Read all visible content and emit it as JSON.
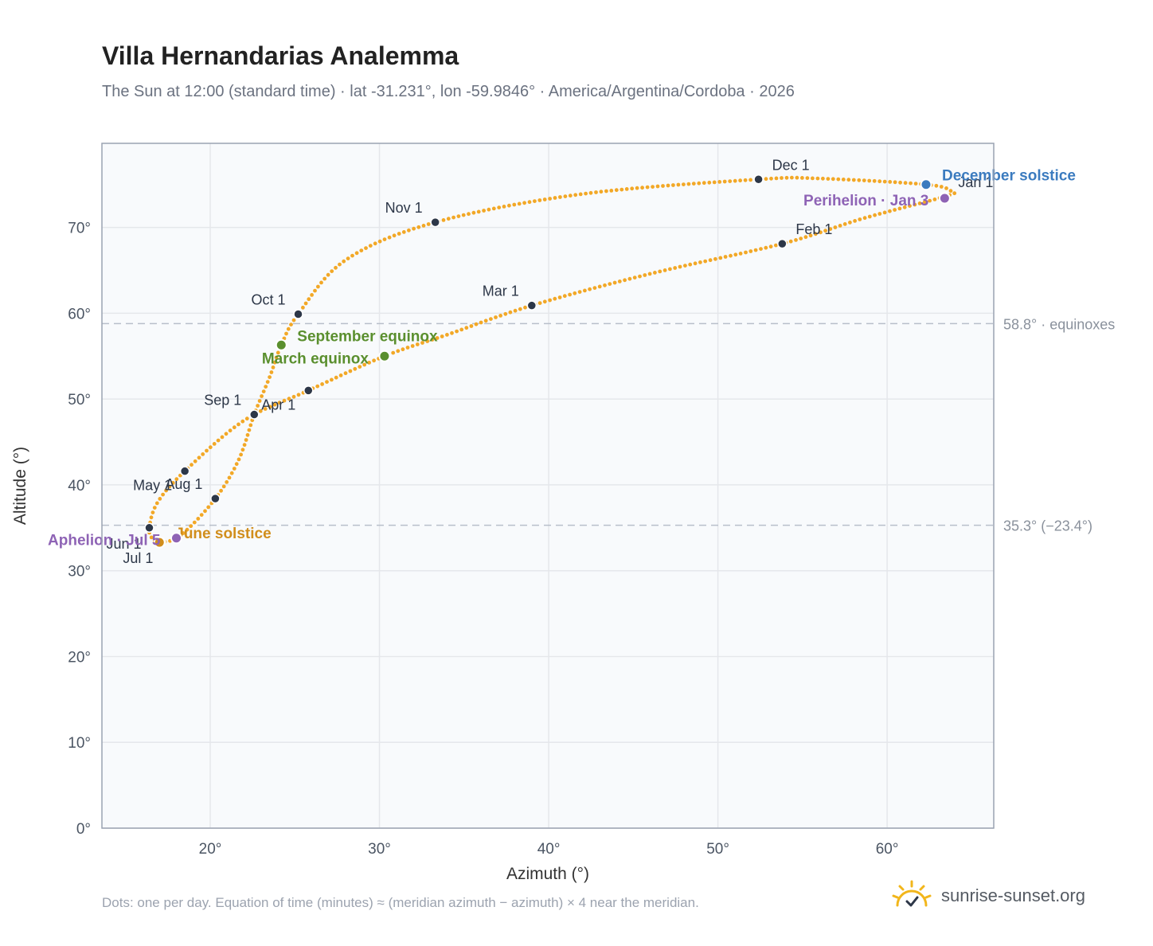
{
  "header": {
    "title": "Villa Hernandarias Analemma",
    "subtitle": "The Sun at 12:00 (standard time) · lat -31.231°, lon -59.9846° · America/Argentina/Cordoba · 2026"
  },
  "footer": {
    "note": "Dots: one per day. Equation of time (minutes) ≈ (meridian azimuth − azimuth) × 4 near the meridian.",
    "brand": "sunrise-sunset.org",
    "brand_icon": "sun-check-icon"
  },
  "colors": {
    "curve": "#f2a827",
    "month_dot": "#2d3748",
    "equinox": "#5a8f2e",
    "december_solstice": "#3b7bbf",
    "june_solstice": "#d18e1c",
    "apsis": "#8e63b5",
    "plot_bg": "#f8fafc",
    "grid": "#e5e7eb",
    "reference_line": "#b8bfca"
  },
  "chart_data": {
    "type": "scatter",
    "xlabel": "Azimuth (°)",
    "ylabel": "Altitude (°)",
    "xlim": [
      13.6,
      66.3
    ],
    "ylim": [
      0,
      79.8
    ],
    "xticks": [
      "20°",
      "30°",
      "40°",
      "50°",
      "60°"
    ],
    "xtick_values": [
      20,
      30,
      40,
      50,
      60
    ],
    "yticks": [
      "0°",
      "10°",
      "20°",
      "30°",
      "40°",
      "50°",
      "60°",
      "70°"
    ],
    "ytick_values": [
      0,
      10,
      20,
      30,
      40,
      50,
      60,
      70
    ],
    "grid": true,
    "reference_lines": [
      {
        "y": 58.8,
        "label": "58.8° · equinoxes"
      },
      {
        "y": 35.3,
        "label": "35.3° (−23.4°)"
      }
    ],
    "month_points": [
      {
        "label": "Jan 1",
        "x": 63.4,
        "y": 73.6,
        "pos": "ur"
      },
      {
        "label": "Feb 1",
        "x": 53.8,
        "y": 68.1,
        "pos": "ur"
      },
      {
        "label": "Mar 1",
        "x": 39.0,
        "y": 60.9,
        "pos": "ul"
      },
      {
        "label": "Apr 1",
        "x": 25.8,
        "y": 51.0,
        "pos": "ll"
      },
      {
        "label": "May 1",
        "x": 18.5,
        "y": 41.6,
        "pos": "ll"
      },
      {
        "label": "Jun 1",
        "x": 16.4,
        "y": 35.0,
        "pos": "bl"
      },
      {
        "label": "Jul 1",
        "x": 17.1,
        "y": 33.3,
        "pos": "bl"
      },
      {
        "label": "Aug 1",
        "x": 20.3,
        "y": 38.4,
        "pos": "ul"
      },
      {
        "label": "Sep 1",
        "x": 22.6,
        "y": 48.2,
        "pos": "ul"
      },
      {
        "label": "Oct 1",
        "x": 25.2,
        "y": 59.9,
        "pos": "ul"
      },
      {
        "label": "Nov 1",
        "x": 33.3,
        "y": 70.6,
        "pos": "ul"
      },
      {
        "label": "Dec 1",
        "x": 52.4,
        "y": 75.6,
        "pos": "ur"
      }
    ],
    "events": [
      {
        "label": "March equinox",
        "x": 30.3,
        "y": 55.0,
        "kind": "equinox",
        "pos": "left"
      },
      {
        "label": "September equinox",
        "x": 24.2,
        "y": 56.3,
        "kind": "equinox",
        "pos": "right"
      },
      {
        "label": "December solstice",
        "x": 62.3,
        "y": 75.0,
        "kind": "december_solstice",
        "pos": "right"
      },
      {
        "label": "June solstice",
        "x": 17.0,
        "y": 33.3,
        "kind": "june_solstice",
        "pos": "right"
      },
      {
        "label": "Perihelion · Jan 3",
        "x": 63.4,
        "y": 73.4,
        "kind": "apsis",
        "pos": "left"
      },
      {
        "label": "Aphelion · Jul 5",
        "x": 18.0,
        "y": 33.8,
        "kind": "apsis",
        "pos": "left"
      }
    ],
    "curve_points": [
      [
        63.4,
        73.6
      ],
      [
        58.5,
        71.0
      ],
      [
        53.8,
        68.1
      ],
      [
        46.0,
        64.6
      ],
      [
        39.0,
        60.9
      ],
      [
        34.0,
        57.5
      ],
      [
        30.3,
        55.0
      ],
      [
        25.8,
        51.0
      ],
      [
        22.0,
        47.5
      ],
      [
        18.5,
        41.6
      ],
      [
        16.9,
        38.0
      ],
      [
        16.4,
        35.0
      ],
      [
        16.6,
        33.7
      ],
      [
        17.1,
        33.3
      ],
      [
        18.3,
        34.2
      ],
      [
        20.3,
        38.4
      ],
      [
        21.7,
        43.0
      ],
      [
        22.6,
        48.2
      ],
      [
        23.5,
        52.5
      ],
      [
        24.2,
        56.3
      ],
      [
        25.2,
        59.9
      ],
      [
        28.0,
        66.2
      ],
      [
        33.3,
        70.6
      ],
      [
        42.0,
        73.9
      ],
      [
        52.4,
        75.6
      ],
      [
        56.0,
        75.7
      ],
      [
        62.3,
        75.0
      ],
      [
        63.8,
        74.2
      ],
      [
        63.4,
        73.6
      ]
    ]
  }
}
